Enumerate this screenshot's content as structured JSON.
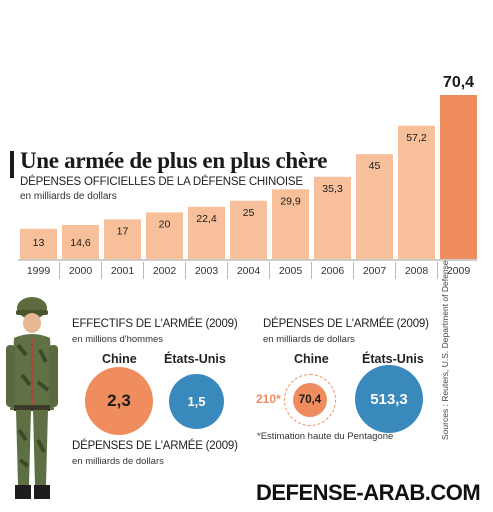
{
  "header": {
    "title": "Une armée de plus en plus chère",
    "subtitle": "DÉPENSES OFFICIELLES DE LA DÉFENSE CHINOISE",
    "unit": "en milliards de dollars"
  },
  "chart_data": {
    "type": "bar",
    "categories": [
      "1999",
      "2000",
      "2001",
      "2002",
      "2003",
      "2004",
      "2005",
      "2006",
      "2007",
      "2008",
      "2009"
    ],
    "values": [
      13,
      14.6,
      17,
      20,
      22.4,
      25,
      29.9,
      35.3,
      45,
      57.2,
      70.4
    ],
    "value_labels": [
      "13",
      "14,6",
      "17",
      "20",
      "22,4",
      "25",
      "29,9",
      "35,3",
      "45",
      "57,2",
      "70,4"
    ],
    "title": "DÉPENSES OFFICIELLES DE LA DÉFENSE CHINOISE",
    "ylabel": "en milliards de dollars",
    "ylim": [
      0,
      70.4
    ],
    "grid": false,
    "colors": {
      "bar": "#f7c09a",
      "highlight": "#f08d5e"
    }
  },
  "effectifs": {
    "heading": "EFFECTIFS DE L'ARMÉE (2009)",
    "unit": "en millions d'hommes",
    "col_chine": "Chine",
    "col_usa": "États-Unis",
    "chine_value": "2,3",
    "usa_value": "1,5",
    "chine_color": "#f08d5e",
    "usa_color": "#3a89bd"
  },
  "depenses_left": {
    "heading": "DÉPENSES DE L'ARMÉE (2009)",
    "unit": "en milliards de dollars"
  },
  "depenses_right": {
    "heading": "DÉPENSES DE L'ARMÉE (2009)",
    "unit": "en milliards de dollars",
    "col_chine": "Chine",
    "col_usa": "États-Unis",
    "estimate_value": "210*",
    "chine_value": "70,4",
    "usa_value": "513,3",
    "footnote": "*Estimation haute du Pentagone",
    "chine_color": "#f08d5e",
    "usa_color": "#3a89bd"
  },
  "sources": "Sources : Reuters, U.S. Department of Defense",
  "watermark": "DEFENSE-ARAB.COM",
  "icons": {
    "soldier": "soldier-illustration"
  }
}
